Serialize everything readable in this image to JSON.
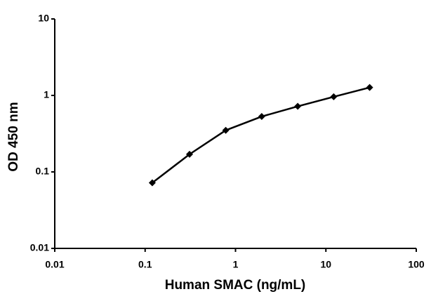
{
  "chart_data": {
    "type": "line",
    "x_label": "Human SMAC (ng/mL)",
    "y_label": "OD 450 nm",
    "x": [
      0.12,
      0.31,
      0.78,
      1.95,
      4.88,
      12.2,
      30.5
    ],
    "series": [
      {
        "color": "#000000",
        "values": [
          0.072,
          0.17,
          0.35,
          0.53,
          0.72,
          0.96,
          1.27
        ]
      }
    ],
    "xlim": [
      0.01,
      100
    ],
    "ylim": [
      0.01,
      10
    ],
    "xticks": [
      0.01,
      0.1,
      1,
      10,
      100
    ],
    "yticks": [
      0.01,
      0.1,
      1,
      10
    ],
    "xscale": "log",
    "yscale": "log",
    "grid": false,
    "marker": "diamond"
  }
}
